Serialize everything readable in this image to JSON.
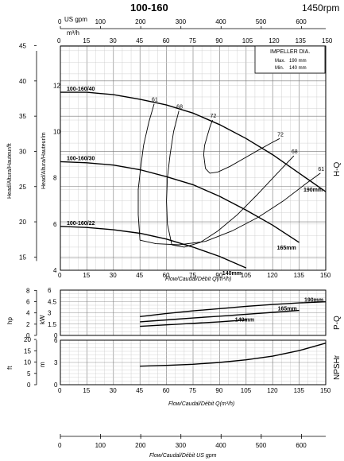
{
  "header": {
    "title": "100-160",
    "speed": "1450rpm"
  },
  "top_axes": {
    "usgpm_label": "US gpm",
    "usgpm_ticks": [
      0,
      100,
      200,
      300,
      400,
      500,
      600
    ],
    "m3h_label": "m³/h",
    "m3h_ticks": [
      0,
      15,
      30,
      45,
      60,
      75,
      90,
      105,
      120,
      135,
      150
    ]
  },
  "bottom_axis": {
    "usgpm_ticks": [
      0,
      100,
      200,
      300,
      400,
      500,
      600
    ],
    "label": "Flow/Caudal/Débit  US gpm"
  },
  "impeller_box": {
    "title": "IMPELLER DIA.",
    "max_label": "Max.",
    "max_value": "190 mm",
    "min_label": "Min.",
    "min_value": "140 mm"
  },
  "chart_data": [
    {
      "id": "hq",
      "type": "line",
      "side_label": "H-Q",
      "xlabel": "Flow/Caudal/Débit Q(m³/h)",
      "ylabel_ft": "Head/Altura/Hauteur/ft",
      "ylabel_m": "Head/Altura/Hauteur/m",
      "xlim": [
        0,
        150
      ],
      "ylim_m": [
        4,
        13.7
      ],
      "x_ticks": [
        0,
        15,
        30,
        45,
        60,
        75,
        90,
        105,
        120,
        135,
        150
      ],
      "y_ticks_m": [
        4,
        6,
        8,
        10,
        12
      ],
      "y_ticks_ft": [
        15,
        20,
        25,
        30,
        35,
        40,
        45
      ],
      "series": [
        {
          "name": "100-160/40",
          "end_label": "190mm",
          "x": [
            0,
            15,
            30,
            45,
            60,
            75,
            90,
            105,
            120,
            135,
            150
          ],
          "y": [
            11.7,
            11.7,
            11.6,
            11.4,
            11.15,
            10.8,
            10.3,
            9.7,
            9.0,
            8.2,
            7.4
          ]
        },
        {
          "name": "100-160/30",
          "end_label": "165mm",
          "x": [
            0,
            15,
            30,
            45,
            60,
            75,
            90,
            105,
            120,
            135
          ],
          "y": [
            8.7,
            8.65,
            8.55,
            8.35,
            8.05,
            7.7,
            7.2,
            6.6,
            5.95,
            5.2
          ]
        },
        {
          "name": "100-160/22",
          "end_label": "140mm",
          "x": [
            0,
            15,
            30,
            45,
            60,
            75,
            90,
            105
          ],
          "y": [
            5.9,
            5.85,
            5.75,
            5.6,
            5.35,
            5.0,
            4.6,
            4.1
          ]
        }
      ],
      "efficiency": [
        {
          "label": "61",
          "x": [
            45,
            44,
            44,
            45.5,
            47,
            50,
            53
          ],
          "y": [
            5.3,
            6.4,
            7.5,
            8.5,
            9.4,
            10.4,
            11.2
          ]
        },
        {
          "label": "68",
          "x": [
            63,
            60.5,
            60,
            60.5,
            62,
            64,
            67
          ],
          "y": [
            5.1,
            6.0,
            7.0,
            8.0,
            9.0,
            10.0,
            10.9
          ]
        },
        {
          "label": "72",
          "x": [
            82,
            81,
            81.5,
            83,
            84.5,
            86
          ],
          "y": [
            8.4,
            9.0,
            9.4,
            9.8,
            10.2,
            10.5
          ]
        },
        {
          "label": "72",
          "x": [
            82,
            84.5,
            89,
            96,
            104,
            112,
            119,
            124
          ],
          "y": [
            8.4,
            8.2,
            8.25,
            8.5,
            8.85,
            9.2,
            9.5,
            9.7
          ]
        },
        {
          "label": "68",
          "x": [
            63,
            70,
            79,
            89,
            100,
            111,
            122,
            132
          ],
          "y": [
            5.1,
            5.0,
            5.2,
            5.7,
            6.4,
            7.25,
            8.15,
            8.95
          ]
        },
        {
          "label": "61",
          "x": [
            45,
            54,
            67,
            82,
            97,
            112,
            126,
            138,
            147
          ],
          "y": [
            5.3,
            5.15,
            5.1,
            5.25,
            5.7,
            6.3,
            7.0,
            7.7,
            8.2
          ]
        }
      ]
    },
    {
      "id": "pq",
      "type": "line",
      "side_label": "P-Q",
      "ylabel_hp": "hp",
      "ylabel_kw": "kW",
      "xlim": [
        0,
        150
      ],
      "ylim_kw": [
        0,
        6
      ],
      "y_ticks_kw": [
        0,
        1.5,
        3,
        4.5,
        6
      ],
      "y_ticks_hp": [
        0,
        2,
        4,
        6,
        8
      ],
      "series": [
        {
          "name": "190mm",
          "x": [
            45,
            60,
            75,
            90,
            105,
            120,
            135,
            150
          ],
          "y": [
            2.5,
            2.9,
            3.25,
            3.55,
            3.85,
            4.1,
            4.3,
            4.45
          ]
        },
        {
          "name": "165mm",
          "x": [
            45,
            60,
            75,
            90,
            105,
            120,
            135
          ],
          "y": [
            1.8,
            2.05,
            2.3,
            2.55,
            2.8,
            3.05,
            3.3
          ]
        },
        {
          "name": "140mm",
          "x": [
            45,
            60,
            75,
            90,
            105
          ],
          "y": [
            1.2,
            1.4,
            1.6,
            1.8,
            2.05
          ]
        }
      ]
    },
    {
      "id": "npsh",
      "type": "line",
      "side_label": "NPSHr",
      "ylabel_ft": "ft",
      "ylabel_m": "m",
      "xlim": [
        0,
        150
      ],
      "ylim_m": [
        0,
        6
      ],
      "x_ticks": [
        0,
        15,
        30,
        45,
        60,
        75,
        90,
        105,
        120,
        135,
        150
      ],
      "y_ticks_m": [
        0,
        3,
        6
      ],
      "y_ticks_ft": [
        0,
        5,
        10,
        15,
        20
      ],
      "xlabel": "Flow/Caudal/Débit Q(m³/h)",
      "series": [
        {
          "name": "NPSHr",
          "x": [
            45,
            60,
            75,
            90,
            105,
            120,
            135,
            150
          ],
          "y": [
            2.5,
            2.6,
            2.75,
            3.0,
            3.35,
            3.85,
            4.6,
            5.6
          ]
        }
      ]
    }
  ]
}
